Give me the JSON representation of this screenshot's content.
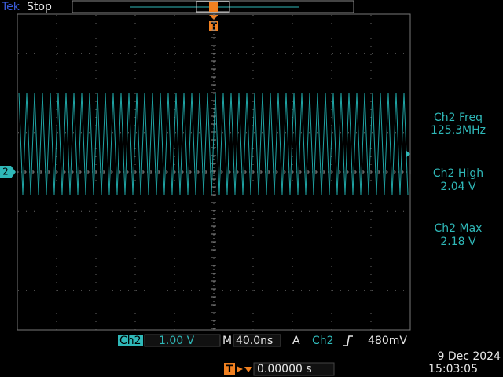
{
  "status": {
    "brand": "Tek",
    "state": "Stop"
  },
  "trigger_marker": "T",
  "channel_marker": "2",
  "measurements": [
    {
      "label": "Ch2 Freq",
      "value": "125.3MHz"
    },
    {
      "label": "Ch2 High",
      "value": "2.04 V"
    },
    {
      "label": "Ch2 Max",
      "value": "2.18 V"
    }
  ],
  "bottom": {
    "channel": "Ch2",
    "scale": "1.00 V",
    "time_prefix": "M",
    "timebase": "40.0ns",
    "trigger_prefix": "A",
    "trigger_source": "Ch2",
    "trigger_level": "480mV",
    "delay": "0.00000 s",
    "date": "9 Dec 2024",
    "time": "15:03:05"
  }
}
